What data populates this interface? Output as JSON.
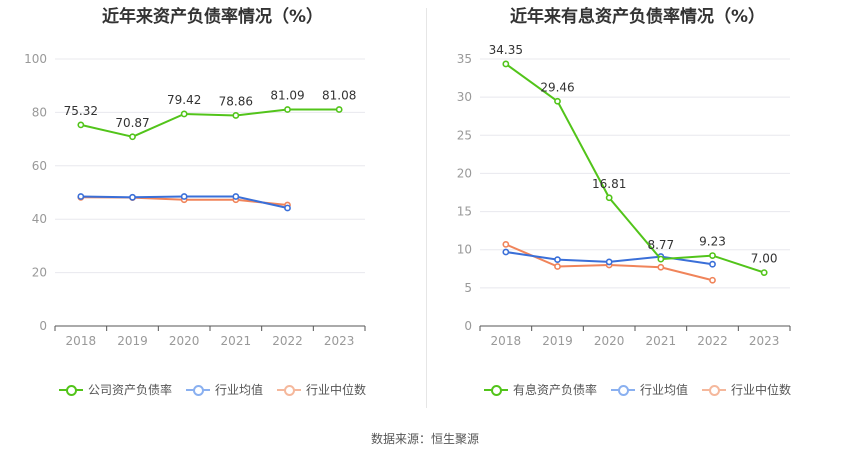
{
  "colors": {
    "green": "#52c41a",
    "blue": "#3a6fd8",
    "orange": "#f0845a",
    "legend_blue": "#8ab0f0",
    "legend_orange": "#f5b89c",
    "axis_text": "#999999",
    "grid": "#e8e8ee",
    "label_text": "#333333"
  },
  "chart_data": [
    {
      "type": "line",
      "title": "近年来资产负债率情况（%）",
      "categories": [
        "2018",
        "2019",
        "2020",
        "2021",
        "2022",
        "2023"
      ],
      "ylim": [
        0,
        100
      ],
      "yticks": [
        0,
        20,
        40,
        60,
        80,
        100
      ],
      "grid": true,
      "legend_position": "bottom",
      "series": [
        {
          "name": "公司资产负债率",
          "values": [
            75.32,
            70.87,
            79.42,
            78.86,
            81.09,
            81.08
          ],
          "labels": [
            "75.32",
            "70.87",
            "79.42",
            "78.86",
            "81.09",
            "81.08"
          ],
          "color": "#52c41a",
          "legend_color": "#52c41a"
        },
        {
          "name": "行业均值",
          "values": [
            48.5,
            48.2,
            48.5,
            48.5,
            44.2,
            null
          ],
          "color": "#3a6fd8",
          "legend_color": "#8ab0f0"
        },
        {
          "name": "行业中位数",
          "values": [
            48.2,
            48.1,
            47.3,
            47.3,
            45.3,
            null
          ],
          "color": "#f0845a",
          "legend_color": "#f5b89c"
        }
      ]
    },
    {
      "type": "line",
      "title": "近年来有息资产负债率情况（%）",
      "categories": [
        "2018",
        "2019",
        "2020",
        "2021",
        "2022",
        "2023"
      ],
      "ylim": [
        0,
        35
      ],
      "yticks": [
        0,
        5,
        10,
        15,
        20,
        25,
        30,
        35
      ],
      "grid": true,
      "legend_position": "bottom",
      "series": [
        {
          "name": "有息资产负债率",
          "values": [
            34.35,
            29.46,
            16.81,
            8.77,
            9.23,
            7.0
          ],
          "labels": [
            "34.35",
            "29.46",
            "16.81",
            "8.77",
            "9.23",
            "7.00"
          ],
          "color": "#52c41a",
          "legend_color": "#52c41a"
        },
        {
          "name": "行业均值",
          "values": [
            9.7,
            8.7,
            8.4,
            9.1,
            8.1,
            null
          ],
          "color": "#3a6fd8",
          "legend_color": "#8ab0f0"
        },
        {
          "name": "行业中位数",
          "values": [
            10.7,
            7.8,
            8.0,
            7.7,
            6.0,
            null
          ],
          "color": "#f0845a",
          "legend_color": "#f5b89c"
        }
      ]
    }
  ],
  "source": "数据来源：恒生聚源"
}
